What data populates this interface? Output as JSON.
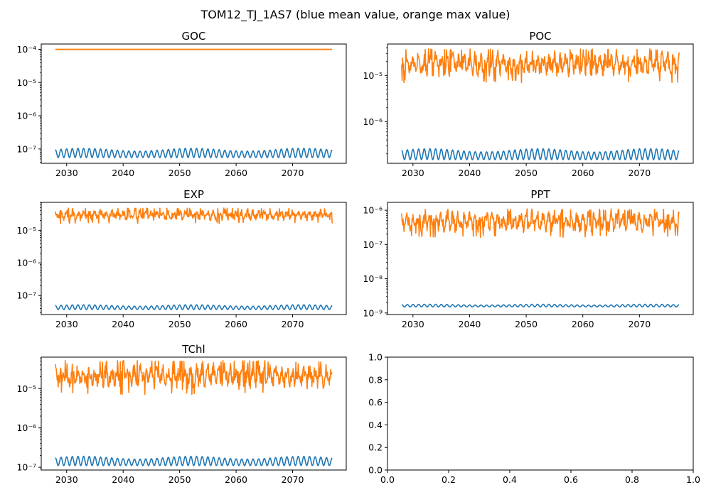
{
  "figure": {
    "title": "TOM12_TJ_1AS7 (blue mean value, orange max value)"
  },
  "colors": {
    "mean": "#1f77b4",
    "max": "#ff7f0e"
  },
  "chart_data": [
    {
      "type": "line",
      "title": "GOC",
      "yscale": "log",
      "xlim": [
        2025.5,
        2079.5
      ],
      "ylim": [
        3.7e-08,
        0.000145
      ],
      "x_ticks": [
        2030,
        2040,
        2050,
        2060,
        2070
      ],
      "x_tick_labels": [
        "2030",
        "2040",
        "2050",
        "2060",
        "2070"
      ],
      "y_ticks": [
        1e-07,
        1e-06,
        1e-05,
        0.0001
      ],
      "y_tick_labels": [
        "10⁻⁷",
        "10⁻⁶",
        "10⁻⁵",
        "10⁻⁴"
      ],
      "series": [
        {
          "color": "mean",
          "pattern": "seasonal",
          "x_start": 2028,
          "x_end": 2077,
          "min": 5.5e-08,
          "max": 1.05e-07
        },
        {
          "color": "max",
          "pattern": "constant",
          "x_start": 2028,
          "x_end": 2077,
          "value": 0.0001
        }
      ]
    },
    {
      "type": "line",
      "title": "POC",
      "yscale": "log",
      "xlim": [
        2025.5,
        2079.5
      ],
      "ylim": [
        1.25e-07,
        4.8e-05
      ],
      "x_ticks": [
        2030,
        2040,
        2050,
        2060,
        2070
      ],
      "x_tick_labels": [
        "2030",
        "2040",
        "2050",
        "2060",
        "2070"
      ],
      "y_ticks": [
        1e-06,
        1e-05
      ],
      "y_tick_labels": [
        "10⁻⁶",
        "10⁻⁵"
      ],
      "series": [
        {
          "color": "mean",
          "pattern": "seasonal",
          "x_start": 2028,
          "x_end": 2077,
          "min": 1.5e-07,
          "max": 2.6e-07
        },
        {
          "color": "max",
          "pattern": "noisy",
          "x_start": 2028,
          "x_end": 2077,
          "min": 7e-06,
          "max": 3.8e-05
        }
      ]
    },
    {
      "type": "line",
      "title": "EXP",
      "yscale": "log",
      "xlim": [
        2025.5,
        2079.5
      ],
      "ylim": [
        2.6e-08,
        7.2e-05
      ],
      "x_ticks": [
        2030,
        2040,
        2050,
        2060,
        2070
      ],
      "x_tick_labels": [
        "2030",
        "2040",
        "2050",
        "2060",
        "2070"
      ],
      "y_ticks": [
        1e-07,
        1e-06,
        1e-05
      ],
      "y_tick_labels": [
        "10⁻⁷",
        "10⁻⁶",
        "10⁻⁵"
      ],
      "series": [
        {
          "color": "mean",
          "pattern": "seasonal",
          "x_start": 2028,
          "x_end": 2077,
          "min": 3.7e-08,
          "max": 5.2e-08
        },
        {
          "color": "max",
          "pattern": "noisy",
          "x_start": 2028,
          "x_end": 2077,
          "min": 1.6e-05,
          "max": 4.8e-05
        }
      ]
    },
    {
      "type": "line",
      "title": "PPT",
      "yscale": "log",
      "xlim": [
        2025.5,
        2079.5
      ],
      "ylim": [
        9e-10,
        1.7e-06
      ],
      "x_ticks": [
        2030,
        2040,
        2050,
        2060,
        2070
      ],
      "x_tick_labels": [
        "2030",
        "2040",
        "2050",
        "2060",
        "2070"
      ],
      "y_ticks": [
        1e-09,
        1e-08,
        1e-07,
        1e-06
      ],
      "y_tick_labels": [
        "10⁻⁹",
        "10⁻⁸",
        "10⁻⁷",
        "10⁻⁶"
      ],
      "series": [
        {
          "color": "mean",
          "pattern": "seasonal",
          "x_start": 2028,
          "x_end": 2077,
          "min": 1.5e-09,
          "max": 1.8e-09
        },
        {
          "color": "max",
          "pattern": "noisy",
          "x_start": 2028,
          "x_end": 2077,
          "min": 1.6e-07,
          "max": 1.1e-06
        }
      ]
    },
    {
      "type": "line",
      "title": "TChl",
      "yscale": "log",
      "xlim": [
        2025.5,
        2079.5
      ],
      "ylim": [
        8.5e-08,
        6.3e-05
      ],
      "x_ticks": [
        2030,
        2040,
        2050,
        2060,
        2070
      ],
      "x_tick_labels": [
        "2030",
        "2040",
        "2050",
        "2060",
        "2070"
      ],
      "y_ticks": [
        1e-07,
        1e-06,
        1e-05
      ],
      "y_tick_labels": [
        "10⁻⁷",
        "10⁻⁶",
        "10⁻⁵"
      ],
      "series": [
        {
          "color": "mean",
          "pattern": "seasonal",
          "x_start": 2028,
          "x_end": 2077,
          "min": 1.1e-07,
          "max": 1.9e-07
        },
        {
          "color": "max",
          "pattern": "noisy",
          "x_start": 2028,
          "x_end": 2077,
          "min": 7e-06,
          "max": 5.2e-05
        }
      ]
    },
    {
      "type": "line",
      "title": "",
      "yscale": "linear",
      "xlim": [
        0,
        1
      ],
      "ylim": [
        0,
        1
      ],
      "x_ticks": [
        0,
        0.2,
        0.4,
        0.6,
        0.8,
        1
      ],
      "x_tick_labels": [
        "0.0",
        "0.2",
        "0.4",
        "0.6",
        "0.8",
        "1.0"
      ],
      "y_ticks": [
        0,
        0.2,
        0.4,
        0.6,
        0.8,
        1
      ],
      "y_tick_labels": [
        "0.0",
        "0.2",
        "0.4",
        "0.6",
        "0.8",
        "1.0"
      ],
      "series": []
    }
  ]
}
